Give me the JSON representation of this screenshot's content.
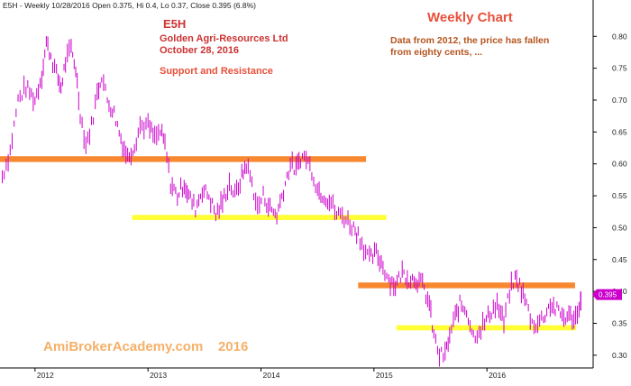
{
  "header": {
    "info": "E5H - Weekly 10/28/2016 Open 0.375, Hi 0.4, Lo 0.37, Close 0.395 (6.8%)"
  },
  "annotations": {
    "ticker": "E5H",
    "company": "Golden Agri-Resources Ltd",
    "date": "October 28, 2016",
    "chart_kind": "Weekly Chart",
    "support_resistance": "Support and Resistance",
    "comment_line1": "Data from 2012, the price has fallen",
    "comment_line2": "from eighty cents, ...",
    "watermark": "AmiBrokerAcademy.com    2016",
    "last_price_label": "0.395"
  },
  "colors": {
    "bars": "#cc00cc",
    "resistance_band": "#f7882f",
    "support_band": "#ffff33",
    "title_red": "#cc3333",
    "watermark": "#f5b06a",
    "comment": "#b5541e",
    "price_marker": "#cc00cc"
  },
  "chart_data": {
    "type": "line",
    "title": "Weekly Chart",
    "x_ticks": [
      "2012",
      "2013",
      "2014",
      "2015",
      "2016"
    ],
    "y_ticks": [
      "0.30",
      "0.35",
      "0.40",
      "0.45",
      "0.50",
      "0.55",
      "0.60",
      "0.65",
      "0.70",
      "0.75",
      "0.80"
    ],
    "ylim": [
      0.28,
      0.84
    ],
    "xlim": [
      2011.69,
      2016.94
    ],
    "series": [
      {
        "values": [
          {
            "x": 2011.71,
            "y": 0.58
          },
          {
            "x": 2011.78,
            "y": 0.62
          },
          {
            "x": 2011.85,
            "y": 0.7
          },
          {
            "x": 2011.92,
            "y": 0.72
          },
          {
            "x": 2012.0,
            "y": 0.7
          },
          {
            "x": 2012.06,
            "y": 0.74
          },
          {
            "x": 2012.1,
            "y": 0.79
          },
          {
            "x": 2012.14,
            "y": 0.77
          },
          {
            "x": 2012.19,
            "y": 0.74
          },
          {
            "x": 2012.23,
            "y": 0.72
          },
          {
            "x": 2012.27,
            "y": 0.76
          },
          {
            "x": 2012.32,
            "y": 0.78
          },
          {
            "x": 2012.36,
            "y": 0.75
          },
          {
            "x": 2012.4,
            "y": 0.68
          },
          {
            "x": 2012.45,
            "y": 0.63
          },
          {
            "x": 2012.5,
            "y": 0.66
          },
          {
            "x": 2012.55,
            "y": 0.71
          },
          {
            "x": 2012.59,
            "y": 0.74
          },
          {
            "x": 2012.64,
            "y": 0.7
          },
          {
            "x": 2012.7,
            "y": 0.68
          },
          {
            "x": 2012.76,
            "y": 0.64
          },
          {
            "x": 2012.82,
            "y": 0.61
          },
          {
            "x": 2012.88,
            "y": 0.63
          },
          {
            "x": 2012.93,
            "y": 0.66
          },
          {
            "x": 2013.0,
            "y": 0.66
          },
          {
            "x": 2013.06,
            "y": 0.64
          },
          {
            "x": 2013.11,
            "y": 0.65
          },
          {
            "x": 2013.15,
            "y": 0.63
          },
          {
            "x": 2013.2,
            "y": 0.57
          },
          {
            "x": 2013.26,
            "y": 0.55
          },
          {
            "x": 2013.32,
            "y": 0.57
          },
          {
            "x": 2013.36,
            "y": 0.55
          },
          {
            "x": 2013.42,
            "y": 0.53
          },
          {
            "x": 2013.48,
            "y": 0.56
          },
          {
            "x": 2013.54,
            "y": 0.55
          },
          {
            "x": 2013.6,
            "y": 0.52
          },
          {
            "x": 2013.66,
            "y": 0.54
          },
          {
            "x": 2013.72,
            "y": 0.57
          },
          {
            "x": 2013.77,
            "y": 0.55
          },
          {
            "x": 2013.83,
            "y": 0.58
          },
          {
            "x": 2013.87,
            "y": 0.6
          },
          {
            "x": 2013.92,
            "y": 0.57
          },
          {
            "x": 2013.97,
            "y": 0.53
          },
          {
            "x": 2014.02,
            "y": 0.55
          },
          {
            "x": 2014.08,
            "y": 0.53
          },
          {
            "x": 2014.14,
            "y": 0.52
          },
          {
            "x": 2014.2,
            "y": 0.56
          },
          {
            "x": 2014.26,
            "y": 0.6
          },
          {
            "x": 2014.31,
            "y": 0.59
          },
          {
            "x": 2014.35,
            "y": 0.61
          },
          {
            "x": 2014.4,
            "y": 0.61
          },
          {
            "x": 2014.45,
            "y": 0.59
          },
          {
            "x": 2014.5,
            "y": 0.56
          },
          {
            "x": 2014.56,
            "y": 0.55
          },
          {
            "x": 2014.62,
            "y": 0.54
          },
          {
            "x": 2014.67,
            "y": 0.52
          },
          {
            "x": 2014.72,
            "y": 0.52
          },
          {
            "x": 2014.77,
            "y": 0.51
          },
          {
            "x": 2014.82,
            "y": 0.5
          },
          {
            "x": 2014.86,
            "y": 0.49
          },
          {
            "x": 2014.91,
            "y": 0.47
          },
          {
            "x": 2014.96,
            "y": 0.45
          },
          {
            "x": 2015.02,
            "y": 0.46
          },
          {
            "x": 2015.08,
            "y": 0.44
          },
          {
            "x": 2015.13,
            "y": 0.42
          },
          {
            "x": 2015.19,
            "y": 0.41
          },
          {
            "x": 2015.25,
            "y": 0.43
          },
          {
            "x": 2015.31,
            "y": 0.42
          },
          {
            "x": 2015.37,
            "y": 0.42
          },
          {
            "x": 2015.43,
            "y": 0.41
          },
          {
            "x": 2015.49,
            "y": 0.38
          },
          {
            "x": 2015.53,
            "y": 0.33
          },
          {
            "x": 2015.58,
            "y": 0.3
          },
          {
            "x": 2015.63,
            "y": 0.3
          },
          {
            "x": 2015.67,
            "y": 0.33
          },
          {
            "x": 2015.72,
            "y": 0.36
          },
          {
            "x": 2015.76,
            "y": 0.38
          },
          {
            "x": 2015.82,
            "y": 0.37
          },
          {
            "x": 2015.88,
            "y": 0.33
          },
          {
            "x": 2015.93,
            "y": 0.34
          },
          {
            "x": 2015.98,
            "y": 0.35
          },
          {
            "x": 2016.04,
            "y": 0.37
          },
          {
            "x": 2016.09,
            "y": 0.38
          },
          {
            "x": 2016.15,
            "y": 0.35
          },
          {
            "x": 2016.2,
            "y": 0.4
          },
          {
            "x": 2016.25,
            "y": 0.42
          },
          {
            "x": 2016.29,
            "y": 0.41
          },
          {
            "x": 2016.35,
            "y": 0.38
          },
          {
            "x": 2016.4,
            "y": 0.35
          },
          {
            "x": 2016.45,
            "y": 0.35
          },
          {
            "x": 2016.5,
            "y": 0.36
          },
          {
            "x": 2016.56,
            "y": 0.38
          },
          {
            "x": 2016.62,
            "y": 0.37
          },
          {
            "x": 2016.68,
            "y": 0.36
          },
          {
            "x": 2016.74,
            "y": 0.36
          },
          {
            "x": 2016.8,
            "y": 0.36
          },
          {
            "x": 2016.83,
            "y": 0.395
          }
        ]
      }
    ],
    "bands": [
      {
        "kind": "resistance",
        "x0": 2011.69,
        "x1": 2014.93,
        "y0": 0.603,
        "y1": 0.612
      },
      {
        "kind": "support",
        "x0": 2012.86,
        "x1": 2015.11,
        "y0": 0.512,
        "y1": 0.52
      },
      {
        "kind": "resistance",
        "x0": 2014.86,
        "x1": 2016.78,
        "y0": 0.405,
        "y1": 0.414
      },
      {
        "kind": "support",
        "x0": 2015.2,
        "x1": 2016.79,
        "y0": 0.339,
        "y1": 0.347
      }
    ],
    "grid": false,
    "legend": "none"
  }
}
